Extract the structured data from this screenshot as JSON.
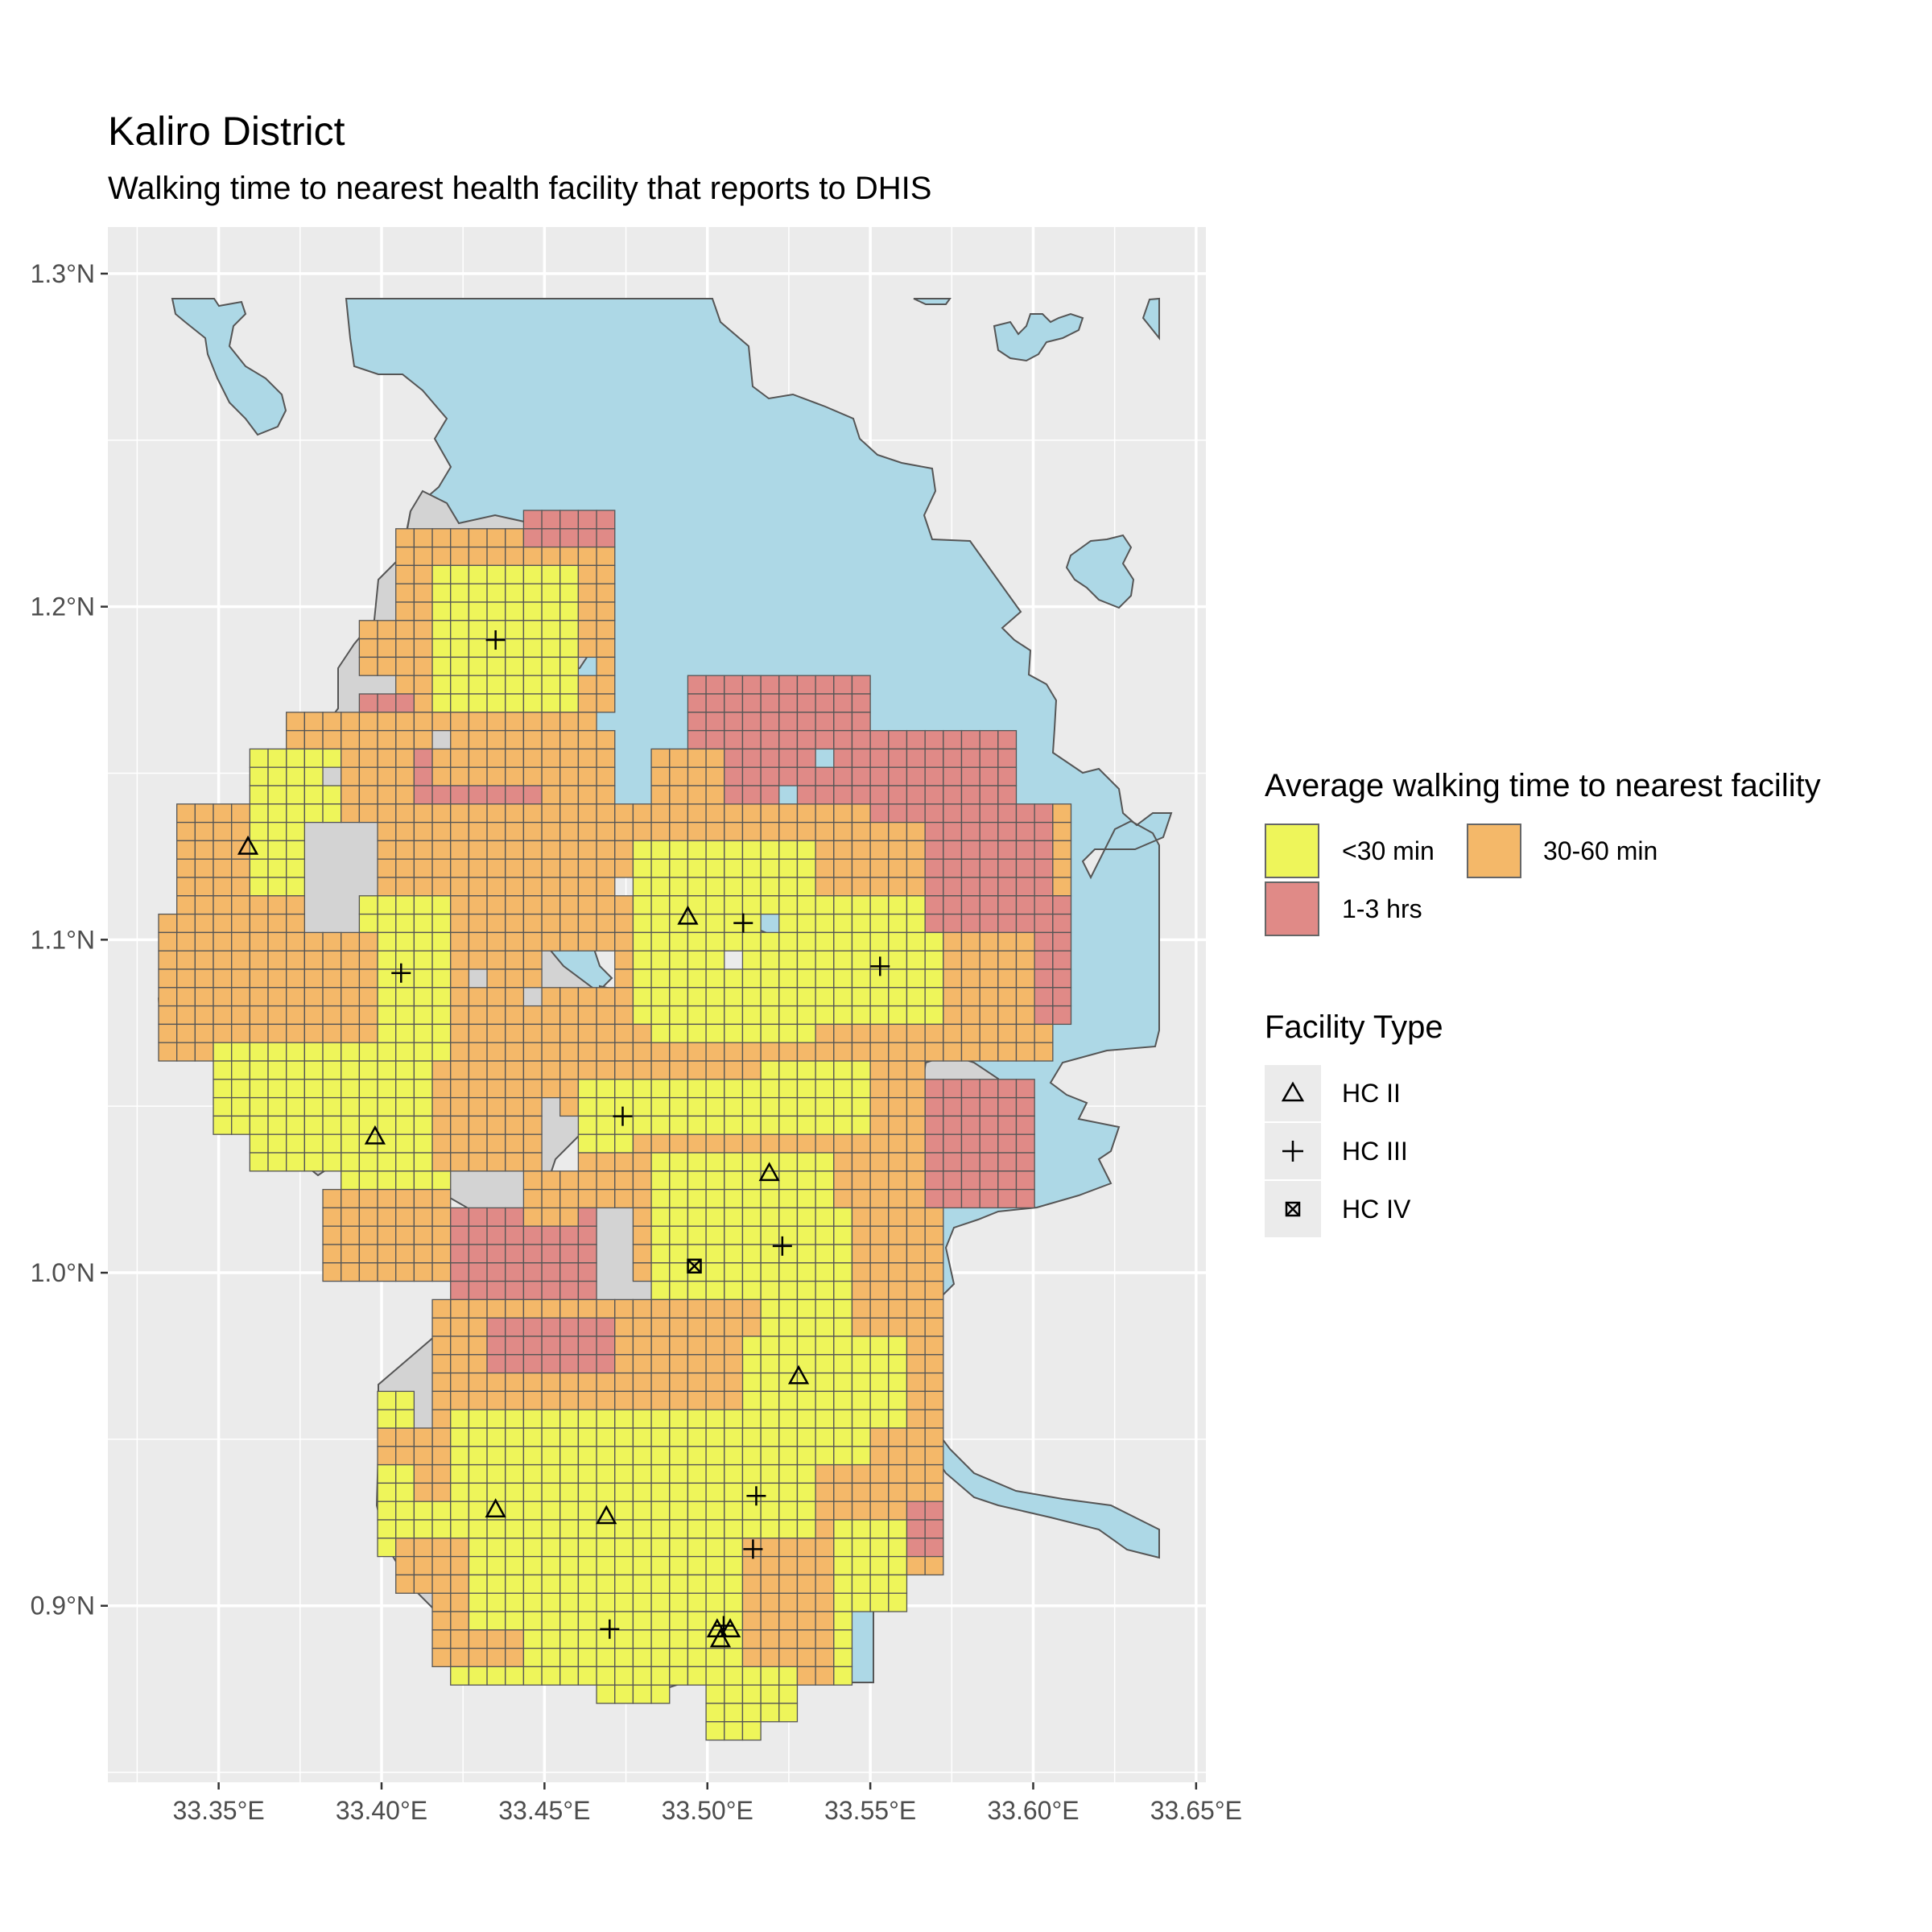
{
  "title": "Kaliro District",
  "subtitle": "Walking time to nearest health facility that reports to DHIS",
  "legend_fill": {
    "title": "Average walking time to nearest facility",
    "items": [
      {
        "label": "<30 min",
        "color": "#eef55a"
      },
      {
        "label": "30-60 min",
        "color": "#f4b869"
      },
      {
        "label": "1-3 hrs",
        "color": "#e08a87"
      }
    ]
  },
  "legend_shape": {
    "title": "Facility Type",
    "items": [
      {
        "label": "HC II",
        "symbol": "triangle-icon"
      },
      {
        "label": "HC III",
        "symbol": "plus-icon"
      },
      {
        "label": "HC IV",
        "symbol": "square-cross-icon"
      }
    ]
  },
  "colors": {
    "panel": "#ebebeb",
    "grid": "#ffffff",
    "water": "#add8e6",
    "land": "#d3d3d3",
    "under_30": "#eef55a",
    "30_60": "#f4b869",
    "1_3": "#e08a87"
  },
  "axes": {
    "x_ticks": [
      "33.35°E",
      "33.40°E",
      "33.45°E",
      "33.50°E",
      "33.55°E",
      "33.60°E",
      "33.65°E"
    ],
    "x_values": [
      33.35,
      33.4,
      33.45,
      33.5,
      33.55,
      33.6,
      33.65
    ],
    "y_ticks": [
      "1.3°N",
      "1.2°N",
      "1.1°N",
      "1.0°N",
      "0.9°N"
    ],
    "y_values": [
      1.3,
      1.2,
      1.1,
      1.0,
      0.9
    ],
    "xlim": [
      33.316,
      33.653
    ],
    "ylim": [
      0.847,
      1.314
    ]
  },
  "facilities": [
    {
      "type": "HC II",
      "lon": 33.359,
      "lat": 1.128
    },
    {
      "type": "HC II",
      "lon": 33.398,
      "lat": 1.041
    },
    {
      "type": "HC II",
      "lon": 33.494,
      "lat": 1.107
    },
    {
      "type": "HC II",
      "lon": 33.519,
      "lat": 1.03
    },
    {
      "type": "HC II",
      "lon": 33.528,
      "lat": 0.969
    },
    {
      "type": "HC II",
      "lon": 33.435,
      "lat": 0.929
    },
    {
      "type": "HC II",
      "lon": 33.469,
      "lat": 0.927
    },
    {
      "type": "HC II",
      "lon": 33.503,
      "lat": 0.893
    },
    {
      "type": "HC II",
      "lon": 33.507,
      "lat": 0.893
    },
    {
      "type": "HC II",
      "lon": 33.504,
      "lat": 0.89
    },
    {
      "type": "HC III",
      "lon": 33.435,
      "lat": 1.19
    },
    {
      "type": "HC III",
      "lon": 33.406,
      "lat": 1.09
    },
    {
      "type": "HC III",
      "lon": 33.511,
      "lat": 1.105
    },
    {
      "type": "HC III",
      "lon": 33.553,
      "lat": 1.092
    },
    {
      "type": "HC III",
      "lon": 33.474,
      "lat": 1.047
    },
    {
      "type": "HC III",
      "lon": 33.523,
      "lat": 1.008
    },
    {
      "type": "HC III",
      "lon": 33.515,
      "lat": 0.933
    },
    {
      "type": "HC III",
      "lon": 33.514,
      "lat": 0.917
    },
    {
      "type": "HC III",
      "lon": 33.47,
      "lat": 0.893
    },
    {
      "type": "HC III",
      "lon": 33.505,
      "lat": 0.894
    },
    {
      "type": "HC IV",
      "lon": 33.496,
      "lat": 1.002
    }
  ]
}
